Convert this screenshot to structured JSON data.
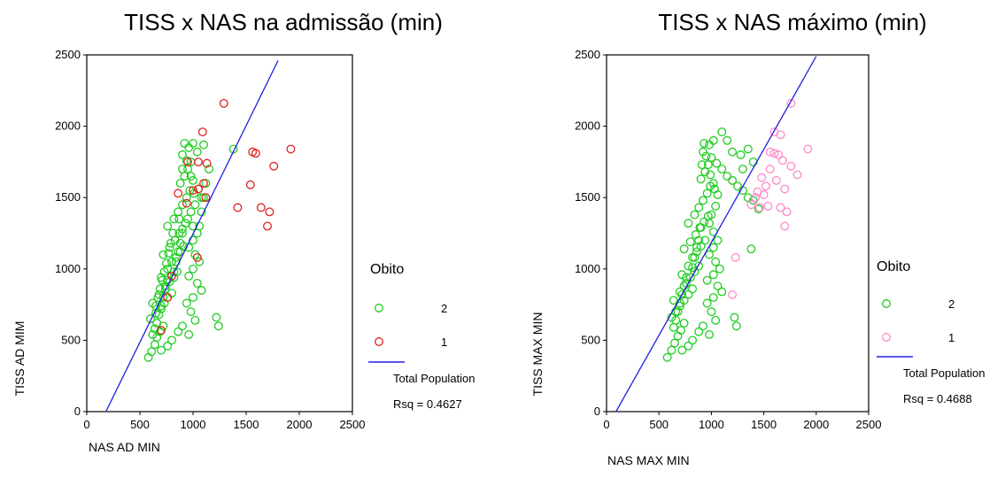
{
  "chart_data": [
    {
      "type": "scatter",
      "title": "TISS x NAS na admissão (min)",
      "xlabel": "NAS AD MIN",
      "ylabel": "TISS AD MIM",
      "xlim": [
        0,
        2500
      ],
      "ylim": [
        0,
        2500
      ],
      "x_ticks": [
        "0",
        "500",
        "1000",
        "1500",
        "2000",
        "2500"
      ],
      "y_ticks": [
        "0",
        "500",
        "1000",
        "1500",
        "2000",
        "2500"
      ],
      "grid": false,
      "legend": {
        "title": "Obito",
        "placement": "right",
        "entries": [
          "2",
          "1",
          "Total Population"
        ]
      },
      "fit_line": {
        "name": "Total Population",
        "rsq_text": "Rsq = 0.4627",
        "x": [
          180,
          1800
        ],
        "y": [
          0,
          2460
        ],
        "color": "#2020e0"
      },
      "series": [
        {
          "name": "2",
          "color": "#22cc22",
          "points": [
            [
              580,
              380
            ],
            [
              610,
              420
            ],
            [
              640,
              470
            ],
            [
              660,
              520
            ],
            [
              690,
              560
            ],
            [
              720,
              600
            ],
            [
              600,
              650
            ],
            [
              650,
              690
            ],
            [
              700,
              720
            ],
            [
              730,
              760
            ],
            [
              760,
              800
            ],
            [
              800,
              830
            ],
            [
              620,
              760
            ],
            [
              680,
              820
            ],
            [
              740,
              880
            ],
            [
              780,
              910
            ],
            [
              820,
              940
            ],
            [
              850,
              980
            ],
            [
              700,
              940
            ],
            [
              760,
              1000
            ],
            [
              800,
              1050
            ],
            [
              840,
              1080
            ],
            [
              880,
              1120
            ],
            [
              910,
              1160
            ],
            [
              720,
              1100
            ],
            [
              780,
              1150
            ],
            [
              830,
              1200
            ],
            [
              870,
              1250
            ],
            [
              900,
              1280
            ],
            [
              930,
              1320
            ],
            [
              760,
              1300
            ],
            [
              820,
              1350
            ],
            [
              860,
              1400
            ],
            [
              900,
              1450
            ],
            [
              940,
              1500
            ],
            [
              970,
              1550
            ],
            [
              880,
              1600
            ],
            [
              920,
              1650
            ],
            [
              950,
              1700
            ],
            [
              980,
              1750
            ],
            [
              900,
              1800
            ],
            [
              960,
              1850
            ],
            [
              1000,
              1880
            ],
            [
              1040,
              1820
            ],
            [
              1100,
              1870
            ],
            [
              1000,
              1620
            ],
            [
              1050,
              1560
            ],
            [
              1080,
              1500
            ],
            [
              1020,
              1450
            ],
            [
              980,
              1400
            ],
            [
              950,
              1350
            ],
            [
              1000,
              1300
            ],
            [
              1040,
              1250
            ],
            [
              1000,
              1200
            ],
            [
              960,
              1150
            ],
            [
              1020,
              1100
            ],
            [
              1060,
              1050
            ],
            [
              1000,
              1000
            ],
            [
              960,
              950
            ],
            [
              1040,
              900
            ],
            [
              1080,
              850
            ],
            [
              1000,
              800
            ],
            [
              940,
              760
            ],
            [
              980,
              700
            ],
            [
              1020,
              640
            ],
            [
              900,
              600
            ],
            [
              860,
              560
            ],
            [
              960,
              540
            ],
            [
              800,
              500
            ],
            [
              760,
              460
            ],
            [
              700,
              430
            ],
            [
              1220,
              660
            ],
            [
              1240,
              600
            ],
            [
              1380,
              1840
            ],
            [
              1150,
              1700
            ],
            [
              1120,
              1600
            ],
            [
              1100,
              1500
            ],
            [
              1080,
              1400
            ],
            [
              1060,
              1300
            ],
            [
              900,
              1250
            ],
            [
              880,
              1180
            ],
            [
              860,
              1120
            ],
            [
              840,
              1050
            ],
            [
              820,
              980
            ],
            [
              760,
              920
            ],
            [
              740,
              860
            ],
            [
              720,
              800
            ],
            [
              700,
              740
            ],
            [
              680,
              680
            ],
            [
              660,
              620
            ],
            [
              640,
              580
            ],
            [
              620,
              540
            ],
            [
              900,
              1700
            ],
            [
              940,
              1760
            ],
            [
              920,
              1880
            ],
            [
              980,
              1650
            ],
            [
              1010,
              1530
            ],
            [
              870,
              1350
            ],
            [
              810,
              1250
            ],
            [
              790,
              1180
            ],
            [
              770,
              1110
            ],
            [
              750,
              1040
            ],
            [
              730,
              980
            ],
            [
              710,
              920
            ],
            [
              690,
              860
            ],
            [
              670,
              800
            ],
            [
              650,
              740
            ]
          ]
        },
        {
          "name": "1",
          "color": "#dd2222",
          "points": [
            [
              1290,
              2160
            ],
            [
              1090,
              1960
            ],
            [
              950,
              1750
            ],
            [
              1050,
              1750
            ],
            [
              1130,
              1740
            ],
            [
              1560,
              1820
            ],
            [
              1590,
              1810
            ],
            [
              1920,
              1840
            ],
            [
              1760,
              1720
            ],
            [
              1540,
              1590
            ],
            [
              1420,
              1430
            ],
            [
              1640,
              1430
            ],
            [
              1720,
              1400
            ],
            [
              1700,
              1300
            ],
            [
              1000,
              1550
            ],
            [
              1050,
              1560
            ],
            [
              1100,
              1600
            ],
            [
              1120,
              1500
            ],
            [
              860,
              1530
            ],
            [
              940,
              1460
            ],
            [
              1040,
              1080
            ],
            [
              800,
              950
            ],
            [
              760,
              800
            ],
            [
              700,
              570
            ]
          ]
        }
      ]
    },
    {
      "type": "scatter",
      "title": "TISS  x NAS máximo (min)",
      "xlabel": "NAS MAX MIN",
      "ylabel": "TISS MAX MIN",
      "xlim": [
        0,
        2500
      ],
      "ylim": [
        0,
        2500
      ],
      "x_ticks": [
        "0",
        "500",
        "1000",
        "1500",
        "2000",
        "2500"
      ],
      "y_ticks": [
        "0",
        "500",
        "1000",
        "1500",
        "2000",
        "2500"
      ],
      "grid": false,
      "legend": {
        "title": "Obito",
        "placement": "right",
        "entries": [
          "2",
          "1",
          "Total Population"
        ]
      },
      "fit_line": {
        "name": "Total Population",
        "rsq_text": "Rsq = 0.4688",
        "x": [
          90,
          2000
        ],
        "y": [
          0,
          2490
        ],
        "color": "#2020e0"
      },
      "series": [
        {
          "name": "2",
          "color": "#22cc22",
          "points": [
            [
              580,
              380
            ],
            [
              620,
              430
            ],
            [
              650,
              480
            ],
            [
              680,
              530
            ],
            [
              710,
              570
            ],
            [
              740,
              620
            ],
            [
              620,
              660
            ],
            [
              660,
              700
            ],
            [
              700,
              740
            ],
            [
              740,
              780
            ],
            [
              780,
              820
            ],
            [
              820,
              860
            ],
            [
              640,
              780
            ],
            [
              700,
              840
            ],
            [
              760,
              900
            ],
            [
              800,
              940
            ],
            [
              840,
              980
            ],
            [
              880,
              1020
            ],
            [
              720,
              960
            ],
            [
              780,
              1020
            ],
            [
              820,
              1080
            ],
            [
              860,
              1120
            ],
            [
              900,
              1160
            ],
            [
              940,
              1200
            ],
            [
              740,
              1140
            ],
            [
              800,
              1190
            ],
            [
              850,
              1240
            ],
            [
              890,
              1290
            ],
            [
              930,
              1330
            ],
            [
              970,
              1370
            ],
            [
              780,
              1320
            ],
            [
              840,
              1380
            ],
            [
              880,
              1430
            ],
            [
              920,
              1480
            ],
            [
              960,
              1530
            ],
            [
              990,
              1580
            ],
            [
              900,
              1630
            ],
            [
              940,
              1680
            ],
            [
              970,
              1730
            ],
            [
              1000,
              1780
            ],
            [
              920,
              1820
            ],
            [
              980,
              1870
            ],
            [
              1020,
              1900
            ],
            [
              1100,
              1960
            ],
            [
              1150,
              1900
            ],
            [
              1200,
              1820
            ],
            [
              1280,
              1800
            ],
            [
              1350,
              1840
            ],
            [
              1050,
              1740
            ],
            [
              1100,
              1700
            ],
            [
              1150,
              1650
            ],
            [
              1200,
              1620
            ],
            [
              1250,
              1580
            ],
            [
              1300,
              1550
            ],
            [
              1350,
              1500
            ],
            [
              1400,
              1480
            ],
            [
              1450,
              1420
            ],
            [
              1380,
              1140
            ],
            [
              1020,
              1600
            ],
            [
              1060,
              1520
            ],
            [
              1040,
              1440
            ],
            [
              1000,
              1380
            ],
            [
              980,
              1320
            ],
            [
              1020,
              1260
            ],
            [
              1060,
              1200
            ],
            [
              1020,
              1150
            ],
            [
              980,
              1100
            ],
            [
              1040,
              1050
            ],
            [
              1080,
              1000
            ],
            [
              1020,
              960
            ],
            [
              960,
              920
            ],
            [
              1060,
              880
            ],
            [
              1100,
              840
            ],
            [
              1020,
              800
            ],
            [
              960,
              760
            ],
            [
              1000,
              700
            ],
            [
              1040,
              640
            ],
            [
              920,
              600
            ],
            [
              880,
              560
            ],
            [
              980,
              540
            ],
            [
              820,
              500
            ],
            [
              780,
              460
            ],
            [
              720,
              430
            ],
            [
              1220,
              660
            ],
            [
              1240,
              600
            ],
            [
              1300,
              1700
            ],
            [
              1400,
              1750
            ],
            [
              900,
              1290
            ],
            [
              880,
              1200
            ],
            [
              860,
              1150
            ],
            [
              840,
              1080
            ],
            [
              820,
              1010
            ],
            [
              760,
              940
            ],
            [
              740,
              880
            ],
            [
              720,
              820
            ],
            [
              700,
              760
            ],
            [
              680,
              700
            ],
            [
              660,
              640
            ],
            [
              640,
              590
            ],
            [
              910,
              1730
            ],
            [
              950,
              1790
            ],
            [
              930,
              1880
            ],
            [
              990,
              1660
            ],
            [
              1030,
              1560
            ]
          ]
        },
        {
          "name": "1",
          "color": "#ff88cc",
          "points": [
            [
              1760,
              2160
            ],
            [
              1600,
              1960
            ],
            [
              1660,
              1940
            ],
            [
              1560,
              1820
            ],
            [
              1600,
              1810
            ],
            [
              1640,
              1800
            ],
            [
              1920,
              1840
            ],
            [
              1680,
              1760
            ],
            [
              1760,
              1720
            ],
            [
              1820,
              1660
            ],
            [
              1560,
              1700
            ],
            [
              1480,
              1640
            ],
            [
              1520,
              1580
            ],
            [
              1440,
              1540
            ],
            [
              1500,
              1520
            ],
            [
              1420,
              1500
            ],
            [
              1620,
              1620
            ],
            [
              1700,
              1560
            ],
            [
              1380,
              1450
            ],
            [
              1460,
              1430
            ],
            [
              1540,
              1440
            ],
            [
              1660,
              1430
            ],
            [
              1720,
              1400
            ],
            [
              1700,
              1300
            ],
            [
              1230,
              1080
            ],
            [
              1200,
              820
            ]
          ]
        }
      ]
    }
  ]
}
